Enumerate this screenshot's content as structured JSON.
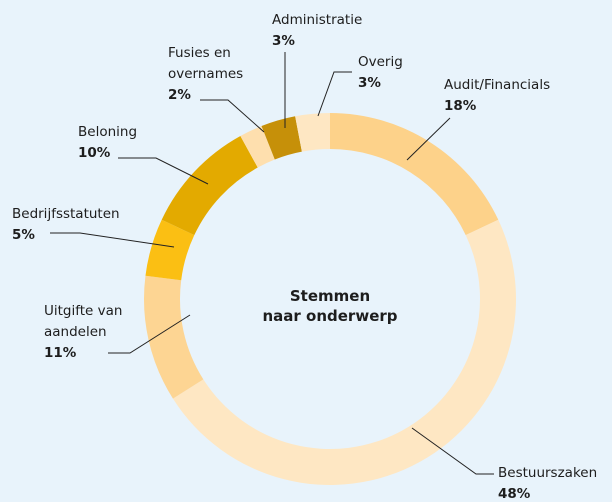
{
  "chart_data": {
    "type": "donut",
    "title": "Stemmen\nnaar onderwerp",
    "categories": [
      "Audit/Financials",
      "Bestuurszaken",
      "Uitgifte van\naandelen",
      "Bedrijfsstatuten",
      "Beloning",
      "Fusies en\novernames",
      "Administratie",
      "Overig"
    ],
    "values": [
      18,
      48,
      11,
      5,
      10,
      2,
      3,
      3
    ],
    "value_labels": [
      "18%",
      "48%",
      "11%",
      "5%",
      "10%",
      "2%",
      "3%",
      "3%"
    ],
    "colors": [
      "#fdd28a",
      "#fee7c3",
      "#fdd593",
      "#fbbf13",
      "#e3aa00",
      "#fedfae",
      "#c69009",
      "#fee7c3"
    ]
  }
}
